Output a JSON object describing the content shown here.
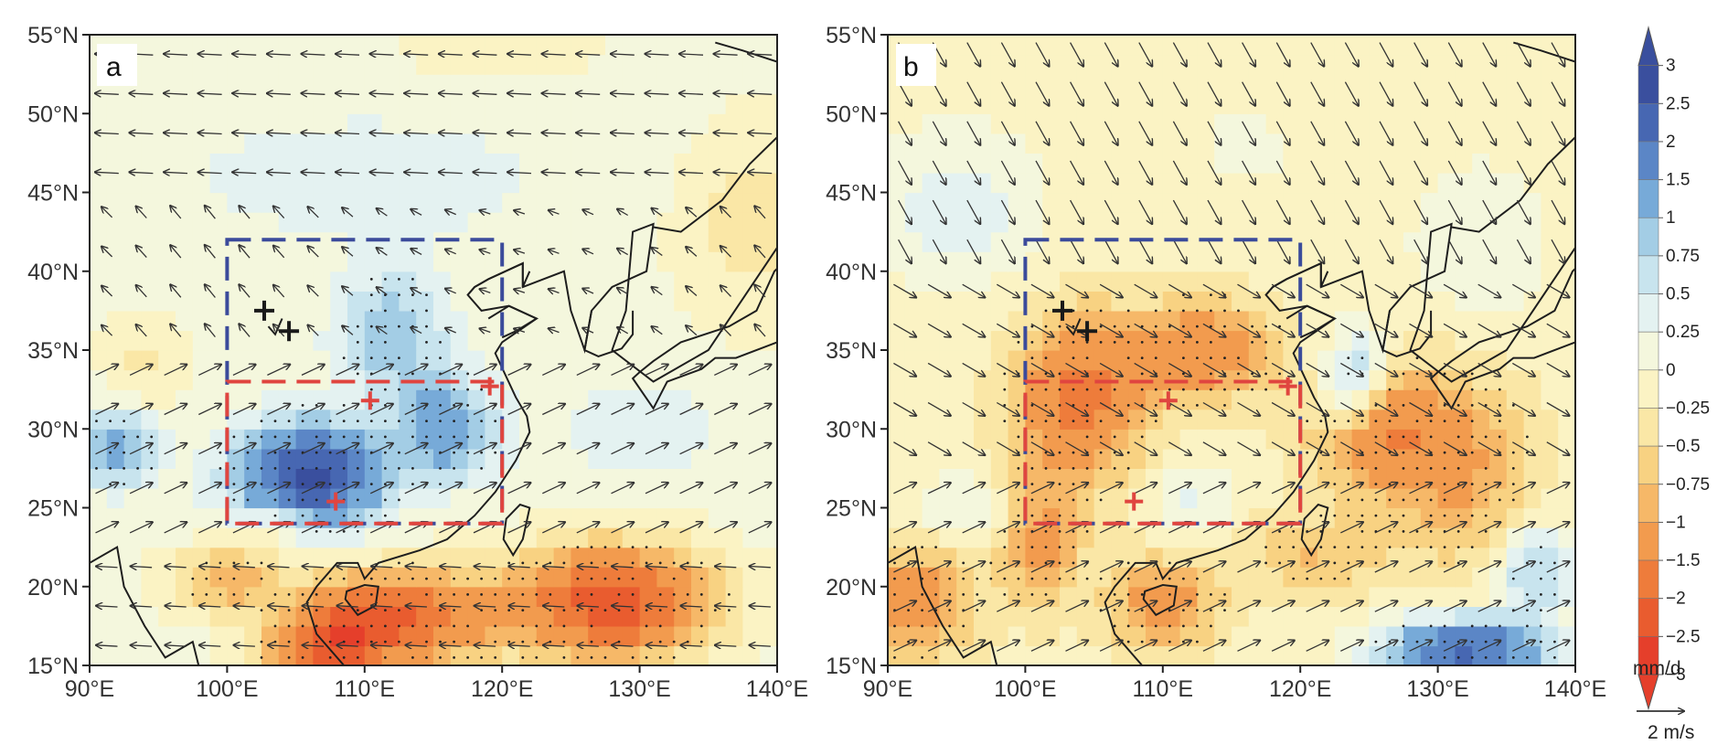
{
  "figure": {
    "lat_ticks": [
      "55°N",
      "50°N",
      "45°N",
      "40°N",
      "35°N",
      "30°N",
      "25°N",
      "20°N",
      "15°N"
    ],
    "lon_ticks": [
      "90°E",
      "100°E",
      "110°E",
      "120°E",
      "130°E",
      "140°E"
    ],
    "lat_range": [
      15,
      55
    ],
    "lon_range": [
      90,
      140
    ]
  },
  "panels": [
    {
      "label": "a",
      "field_pattern": "wet_south",
      "blue_box": {
        "lon": [
          100,
          120
        ],
        "lat": [
          24,
          42
        ]
      },
      "red_box": {
        "lon": [
          100,
          120
        ],
        "lat": [
          24,
          33
        ]
      },
      "black_crosses": [
        {
          "lon": 102.7,
          "lat": 37.5
        },
        {
          "lon": 104.5,
          "lat": 36.2
        }
      ],
      "red_crosses": [
        {
          "lon": 110.4,
          "lat": 31.8
        },
        {
          "lon": 107.9,
          "lat": 25.4
        },
        {
          "lon": 119.1,
          "lat": 32.7
        }
      ]
    },
    {
      "label": "b",
      "field_pattern": "dry_center",
      "blue_box": {
        "lon": [
          100,
          120
        ],
        "lat": [
          24,
          42
        ]
      },
      "red_box": {
        "lon": [
          100,
          120
        ],
        "lat": [
          24,
          33
        ]
      },
      "black_crosses": [
        {
          "lon": 102.7,
          "lat": 37.5
        },
        {
          "lon": 104.5,
          "lat": 36.2
        }
      ],
      "red_crosses": [
        {
          "lon": 110.4,
          "lat": 31.8
        },
        {
          "lon": 107.9,
          "lat": 25.4
        },
        {
          "lon": 119.1,
          "lat": 32.7
        }
      ]
    }
  ],
  "colorbar": {
    "labels": [
      "3",
      "2.5",
      "2",
      "1.5",
      "1",
      "0.75",
      "0.5",
      "0.25",
      "0",
      "−0.25",
      "−0.5",
      "−0.75",
      "−1",
      "−1.5",
      "−2",
      "−2.5",
      "−3"
    ],
    "colors": [
      "#3a4f9e",
      "#4767b2",
      "#5b86c6",
      "#77aad8",
      "#a3cde5",
      "#c8e4ee",
      "#e4f2f1",
      "#f4f7dd",
      "#fbf3c4",
      "#fae7a6",
      "#f8d282",
      "#f6b868",
      "#f29b4e",
      "#ee7c3b",
      "#e95c2f",
      "#e53f2b"
    ],
    "unit": "mm/d"
  },
  "reference_vector": {
    "label": "2 m/s"
  }
}
